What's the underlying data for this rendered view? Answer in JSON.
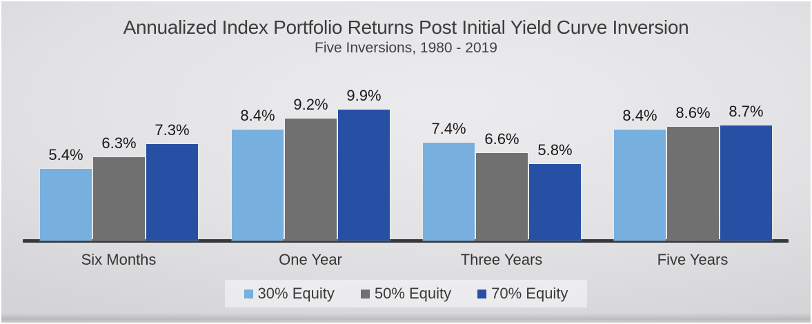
{
  "chart_data": {
    "type": "bar",
    "title": "Annualized Index Portfolio Returns Post Initial Yield Curve Inversion",
    "subtitle": "Five Inversions, 1980 - 2019",
    "categories": [
      "Six Months",
      "One Year",
      "Three Years",
      "Five Years"
    ],
    "series": [
      {
        "name": "30% Equity",
        "color": "#77AFDF",
        "values": [
          5.4,
          8.4,
          7.4,
          8.4
        ]
      },
      {
        "name": "50% Equity",
        "color": "#707070",
        "values": [
          6.3,
          9.2,
          6.6,
          8.6
        ]
      },
      {
        "name": "70% Equity",
        "color": "#2750A5",
        "values": [
          7.3,
          9.9,
          5.8,
          8.7
        ]
      }
    ],
    "value_suffix": "%",
    "data_labels": [
      "5.4%",
      "6.3%",
      "7.3%",
      "8.4%",
      "9.2%",
      "9.9%",
      "7.4%",
      "6.6%",
      "5.8%",
      "8.4%",
      "8.6%",
      "8.7%"
    ],
    "ylim": [
      0,
      10.9
    ],
    "grid": false,
    "legend_position": "bottom",
    "colors": {
      "axis": "#35383C",
      "title_text": "#3C3C3C",
      "value_label_text": "#171717",
      "background": "#DCDCDE"
    }
  }
}
